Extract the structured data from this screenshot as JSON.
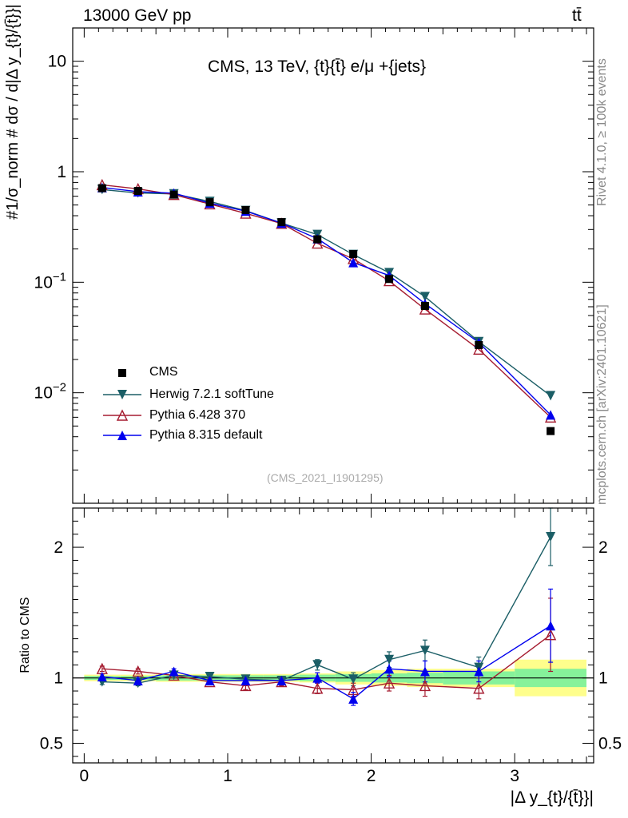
{
  "header": {
    "energy_label": "13000 GeV pp",
    "process_label": "tt̄",
    "rivet_label": "Rivet 4.1.0, ≥ 100k events",
    "source_label": "mcplots.cern.ch [arXiv:2401.10621]",
    "analysis_id": "(CMS_2021_I1901295)"
  },
  "chart_data": {
    "type": "line",
    "title": "CMS, 13 TeV, {t}{t̄} e/μ +{jets}",
    "xlabel": "|Δ y_{t}/{t̄}}|",
    "ylabel": "#1/σ_norm # dσ / d|Δ y_{t}/{t̄}}|",
    "ratio_ylabel": "Ratio to CMS",
    "xlim": [
      -0.08,
      3.55
    ],
    "ylim": [
      0.001,
      20
    ],
    "ylog": true,
    "ratio_ylim": [
      0.35,
      2.3
    ],
    "x_ticks": [
      "0",
      "1",
      "2",
      "3"
    ],
    "y_ticks": [
      "10^-2",
      "10^-1",
      "1",
      "10"
    ],
    "ratio_ticks": [
      "0.5",
      "1",
      "2"
    ],
    "x": [
      0.125,
      0.375,
      0.625,
      0.875,
      1.125,
      1.375,
      1.625,
      1.875,
      2.125,
      2.375,
      2.75,
      3.25
    ],
    "bin_edges": [
      0,
      0.25,
      0.5,
      0.75,
      1.0,
      1.25,
      1.5,
      1.75,
      2.0,
      2.25,
      2.5,
      3.0,
      3.5
    ],
    "cms": [
      0.71,
      0.67,
      0.62,
      0.53,
      0.45,
      0.35,
      0.245,
      0.18,
      0.107,
      0.061,
      0.027,
      0.0045
    ],
    "stat_band": [
      0.015,
      0.015,
      0.02,
      0.02,
      0.02,
      0.02,
      0.025,
      0.03,
      0.035,
      0.04,
      0.05,
      0.07
    ],
    "total_band": [
      0.025,
      0.025,
      0.03,
      0.03,
      0.03,
      0.03,
      0.035,
      0.05,
      0.06,
      0.07,
      0.07,
      0.14
    ],
    "series": [
      {
        "name": "Herwig 7.2.1 softTune",
        "color": "#1b5e66",
        "marker": "triangle-down",
        "values": [
          0.69,
          0.643,
          0.63,
          0.538,
          0.445,
          0.343,
          0.27,
          0.178,
          0.122,
          0.074,
          0.029,
          0.0094
        ],
        "ratio": [
          0.97,
          0.96,
          1.02,
          1.01,
          0.99,
          0.98,
          1.1,
          0.99,
          1.14,
          1.21,
          1.08,
          2.08
        ],
        "ratio_err": [
          0.02,
          0.02,
          0.02,
          0.02,
          0.03,
          0.03,
          0.04,
          0.05,
          0.06,
          0.08,
          0.08,
          0.22
        ]
      },
      {
        "name": "Pythia 6.428 370",
        "color": "#a51c30",
        "marker": "triangle-open",
        "values": [
          0.76,
          0.7,
          0.62,
          0.51,
          0.42,
          0.34,
          0.225,
          0.163,
          0.103,
          0.057,
          0.0247,
          0.006
        ],
        "ratio": [
          1.07,
          1.05,
          1.02,
          0.97,
          0.94,
          0.97,
          0.92,
          0.91,
          0.96,
          0.94,
          0.92,
          1.33
        ],
        "ratio_err": [
          0.02,
          0.02,
          0.02,
          0.02,
          0.03,
          0.03,
          0.04,
          0.05,
          0.06,
          0.08,
          0.08,
          0.28
        ]
      },
      {
        "name": "Pythia 8.315 default",
        "color": "#0000ee",
        "marker": "triangle-up",
        "values": [
          0.72,
          0.66,
          0.64,
          0.52,
          0.44,
          0.343,
          0.248,
          0.151,
          0.115,
          0.064,
          0.0285,
          0.0063
        ],
        "ratio": [
          1.01,
          0.98,
          1.05,
          0.98,
          0.98,
          0.98,
          1.0,
          0.84,
          1.07,
          1.05,
          1.05,
          1.4
        ],
        "ratio_err": [
          0.02,
          0.02,
          0.02,
          0.02,
          0.03,
          0.03,
          0.04,
          0.05,
          0.06,
          0.08,
          0.08,
          0.28
        ]
      }
    ],
    "legend": [
      {
        "label": "CMS",
        "marker": "square"
      },
      {
        "label": "Herwig 7.2.1 softTune",
        "marker": "triangle-down"
      },
      {
        "label": "Pythia 6.428 370",
        "marker": "triangle-open"
      },
      {
        "label": "Pythia 8.315 default",
        "marker": "triangle-up"
      }
    ],
    "colors": {
      "data": "#000000",
      "band_stat": "#86f29a",
      "band_total": "#fefe8c"
    }
  }
}
